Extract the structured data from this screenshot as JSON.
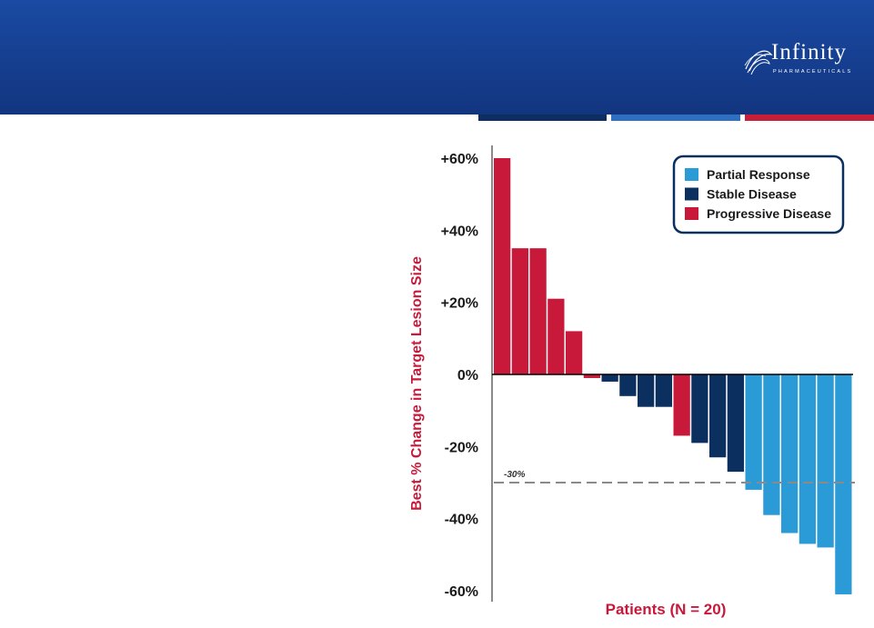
{
  "brand": {
    "name": "Infinity",
    "sub": "PHARMACEUTICALS"
  },
  "colors": {
    "partial": "#2b9bd8",
    "stable": "#0b2f5e",
    "progressive": "#c8193a",
    "header": "#163f94"
  },
  "chart_data": {
    "type": "bar",
    "title": "",
    "xlabel": "Patients (N = 20)",
    "ylabel": "Best % Change in Target Lesion Size",
    "ylim": [
      -60,
      60
    ],
    "yticks": [
      60,
      40,
      20,
      0,
      -20,
      -40,
      -60
    ],
    "ytick_labels": [
      "+60%",
      "+40%",
      "+20%",
      "0%",
      "-20%",
      "-40%",
      "-60%"
    ],
    "reference_line": {
      "value": -30,
      "label": "-30%"
    },
    "legend": {
      "placement": "top-right",
      "entries": [
        {
          "key": "partial",
          "label": "Partial Response"
        },
        {
          "key": "stable",
          "label": "Stable Disease"
        },
        {
          "key": "progressive",
          "label": "Progressive Disease"
        }
      ]
    },
    "bars": [
      {
        "value": 60,
        "category": "progressive"
      },
      {
        "value": 35,
        "category": "progressive"
      },
      {
        "value": 35,
        "category": "progressive"
      },
      {
        "value": 21,
        "category": "progressive"
      },
      {
        "value": 12,
        "category": "progressive"
      },
      {
        "value": -1,
        "category": "progressive"
      },
      {
        "value": -2,
        "category": "stable"
      },
      {
        "value": -6,
        "category": "stable"
      },
      {
        "value": -9,
        "category": "stable"
      },
      {
        "value": -9,
        "category": "stable"
      },
      {
        "value": -17,
        "category": "progressive"
      },
      {
        "value": -19,
        "category": "stable"
      },
      {
        "value": -23,
        "category": "stable"
      },
      {
        "value": -27,
        "category": "stable"
      },
      {
        "value": -32,
        "category": "partial"
      },
      {
        "value": -39,
        "category": "partial"
      },
      {
        "value": -44,
        "category": "partial"
      },
      {
        "value": -47,
        "category": "partial"
      },
      {
        "value": -48,
        "category": "partial"
      },
      {
        "value": -61,
        "category": "partial"
      }
    ]
  }
}
